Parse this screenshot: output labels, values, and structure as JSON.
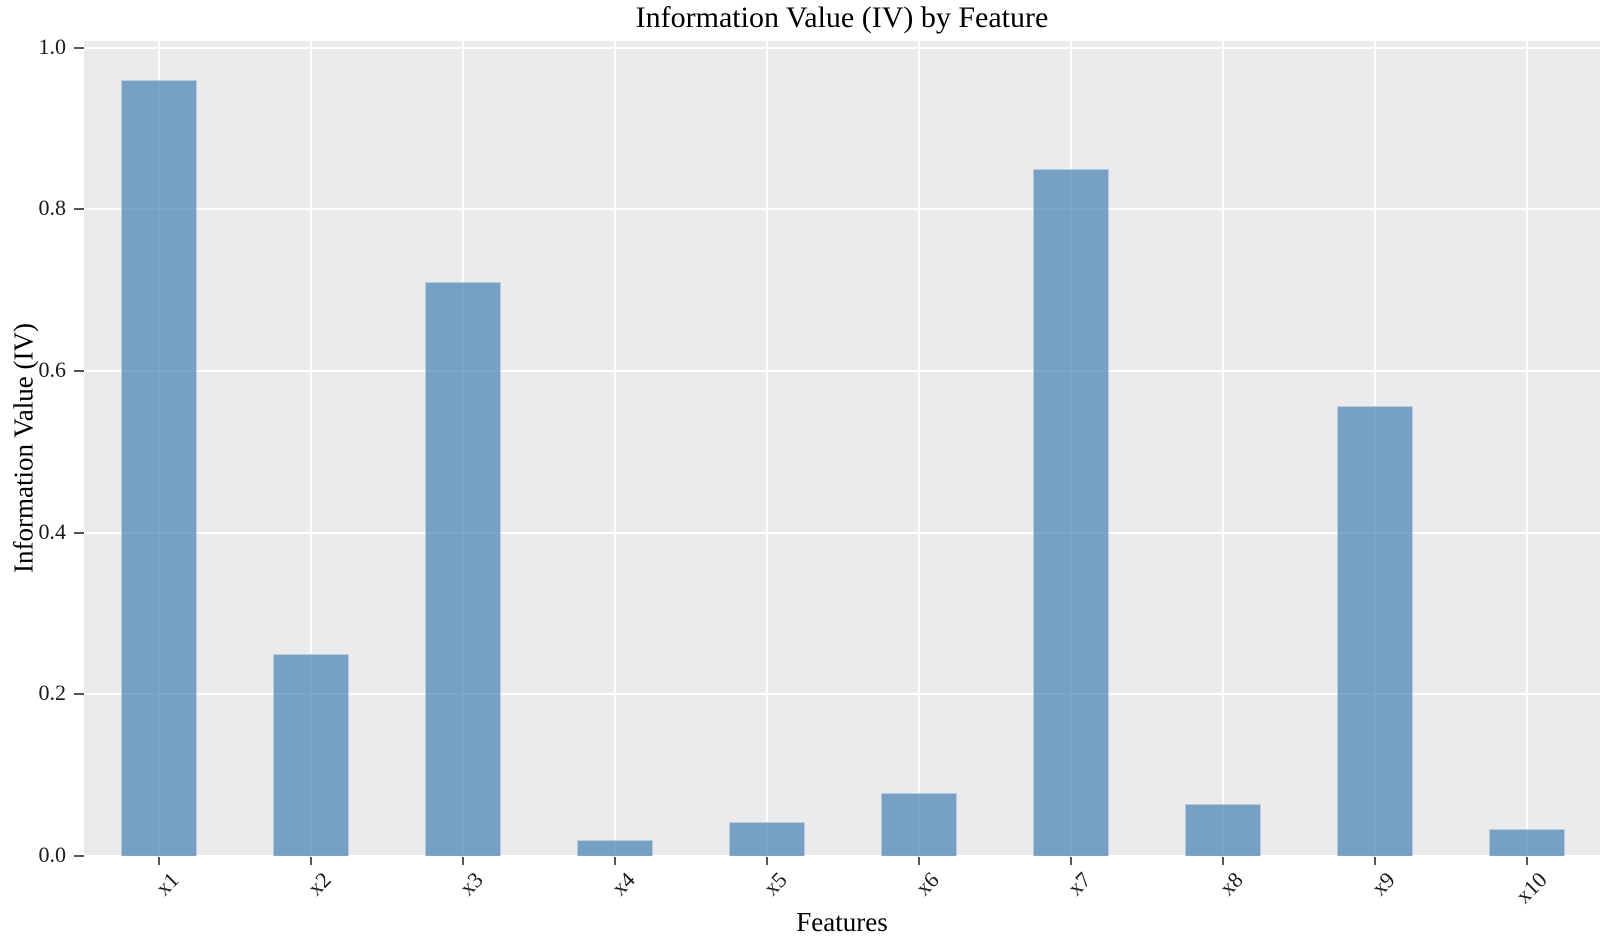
{
  "chart_data": {
    "type": "bar",
    "title": "Information Value (IV) by Feature",
    "xlabel": "Features",
    "ylabel": "Information Value (IV)",
    "categories": [
      "x1",
      "x2",
      "x3",
      "x4",
      "x5",
      "x6",
      "x7",
      "x8",
      "x9",
      "x10"
    ],
    "values": [
      0.96,
      0.25,
      0.71,
      0.02,
      0.042,
      0.078,
      0.85,
      0.064,
      0.557,
      0.033
    ],
    "yticks": [
      0.0,
      0.2,
      0.4,
      0.6,
      0.8,
      1.0
    ],
    "ytick_labels": [
      "0.0",
      "0.2",
      "0.4",
      "0.6",
      "0.8",
      "1.0"
    ],
    "ylim": [
      0,
      1.008
    ],
    "grid": true,
    "legend_position": "none",
    "colors": {
      "bar_fill": "rgba(70,130,180,0.7)",
      "bar_base_hex": "#4682B4",
      "plot_background": "#EBEBEB",
      "gridline": "#FFFFFF",
      "tick_mark": "#555555",
      "tick_label": "#1a1a1a",
      "text": "#000000",
      "figure_background": "#FFFFFF"
    }
  }
}
